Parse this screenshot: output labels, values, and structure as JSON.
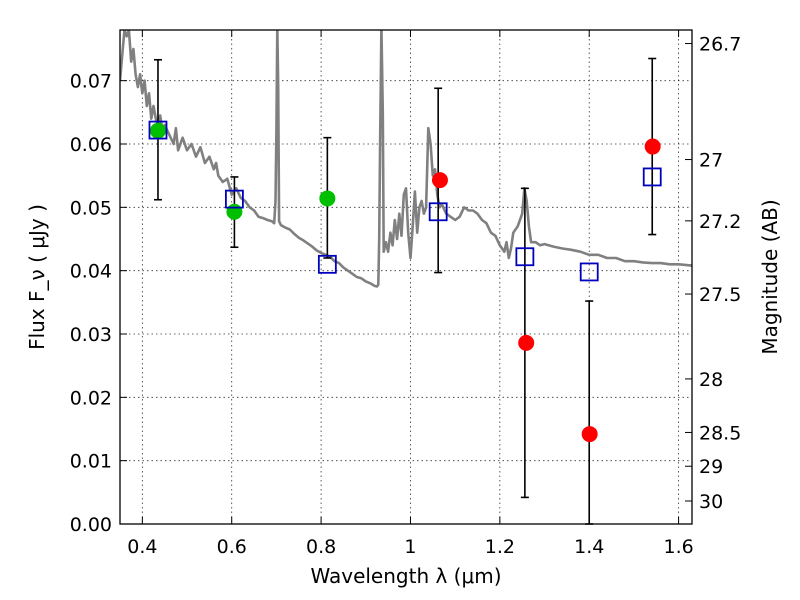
{
  "chart_data": {
    "type": "scatter",
    "title": "",
    "xlabel": "Wavelength  λ (μm)",
    "ylabel": "Flux  F_ν  ( μJy )",
    "y2label": "Magnitude (AB)",
    "xlim": [
      0.35,
      1.63
    ],
    "ylim": [
      0.0,
      0.078
    ],
    "grid": true,
    "x_ticks": [
      {
        "value": 0.4,
        "label": "0.4"
      },
      {
        "value": 0.6,
        "label": "0.6"
      },
      {
        "value": 0.8,
        "label": "0.8"
      },
      {
        "value": 1.0,
        "label": "1"
      },
      {
        "value": 1.2,
        "label": "1.2"
      },
      {
        "value": 1.4,
        "label": "1.4"
      },
      {
        "value": 1.6,
        "label": "1.6"
      }
    ],
    "y_ticks": [
      {
        "value": 0.0,
        "label": "0.00"
      },
      {
        "value": 0.01,
        "label": "0.01"
      },
      {
        "value": 0.02,
        "label": "0.02"
      },
      {
        "value": 0.03,
        "label": "0.03"
      },
      {
        "value": 0.04,
        "label": "0.04"
      },
      {
        "value": 0.05,
        "label": "0.05"
      },
      {
        "value": 0.06,
        "label": "0.06"
      },
      {
        "value": 0.07,
        "label": "0.07"
      }
    ],
    "y2_ticks": [
      {
        "value": 26.7,
        "label": "26.7"
      },
      {
        "value": 27.0,
        "label": "27"
      },
      {
        "value": 27.2,
        "label": "27.2"
      },
      {
        "value": 27.5,
        "label": "27.5"
      },
      {
        "value": 28.0,
        "label": "28"
      },
      {
        "value": 28.5,
        "label": "28.5"
      },
      {
        "value": 29.0,
        "label": "29"
      },
      {
        "value": 30.0,
        "label": "30"
      }
    ],
    "series": [
      {
        "marker": "line",
        "color": "#808080",
        "points": [
          [
            0.35,
            0.07
          ],
          [
            0.355,
            0.074
          ],
          [
            0.36,
            0.078
          ],
          [
            0.365,
            0.077
          ],
          [
            0.37,
            0.078
          ],
          [
            0.375,
            0.073
          ],
          [
            0.38,
            0.075
          ],
          [
            0.385,
            0.071
          ],
          [
            0.39,
            0.069
          ],
          [
            0.395,
            0.071
          ],
          [
            0.4,
            0.068
          ],
          [
            0.405,
            0.07
          ],
          [
            0.41,
            0.066
          ],
          [
            0.415,
            0.068
          ],
          [
            0.42,
            0.064
          ],
          [
            0.425,
            0.066
          ],
          [
            0.43,
            0.064
          ],
          [
            0.435,
            0.063
          ],
          [
            0.44,
            0.0645
          ],
          [
            0.445,
            0.062
          ],
          [
            0.45,
            0.063
          ],
          [
            0.46,
            0.0615
          ],
          [
            0.47,
            0.06
          ],
          [
            0.475,
            0.0625
          ],
          [
            0.48,
            0.059
          ],
          [
            0.49,
            0.061
          ],
          [
            0.5,
            0.059
          ],
          [
            0.51,
            0.06
          ],
          [
            0.52,
            0.058
          ],
          [
            0.53,
            0.0595
          ],
          [
            0.54,
            0.057
          ],
          [
            0.55,
            0.058
          ],
          [
            0.56,
            0.056
          ],
          [
            0.565,
            0.057
          ],
          [
            0.57,
            0.055
          ],
          [
            0.58,
            0.054
          ],
          [
            0.59,
            0.0545
          ],
          [
            0.6,
            0.052
          ],
          [
            0.61,
            0.053
          ],
          [
            0.62,
            0.0515
          ],
          [
            0.63,
            0.051
          ],
          [
            0.64,
            0.05
          ],
          [
            0.65,
            0.0495
          ],
          [
            0.66,
            0.0485
          ],
          [
            0.67,
            0.0483
          ],
          [
            0.68,
            0.048
          ],
          [
            0.69,
            0.0478
          ],
          [
            0.695,
            0.0475
          ],
          [
            0.698,
            0.051
          ],
          [
            0.7,
            0.062
          ],
          [
            0.702,
            0.0785
          ],
          [
            0.704,
            0.069
          ],
          [
            0.706,
            0.0478
          ],
          [
            0.71,
            0.0472
          ],
          [
            0.72,
            0.0468
          ],
          [
            0.73,
            0.0465
          ],
          [
            0.74,
            0.0458
          ],
          [
            0.75,
            0.0452
          ],
          [
            0.76,
            0.0448
          ],
          [
            0.77,
            0.0443
          ],
          [
            0.78,
            0.0438
          ],
          [
            0.79,
            0.0432
          ],
          [
            0.8,
            0.0428
          ],
          [
            0.81,
            0.0425
          ],
          [
            0.82,
            0.0422
          ],
          [
            0.83,
            0.0415
          ],
          [
            0.84,
            0.0412
          ],
          [
            0.85,
            0.0405
          ],
          [
            0.86,
            0.04
          ],
          [
            0.87,
            0.0395
          ],
          [
            0.88,
            0.039
          ],
          [
            0.89,
            0.0388
          ],
          [
            0.9,
            0.0383
          ],
          [
            0.91,
            0.038
          ],
          [
            0.915,
            0.0378
          ],
          [
            0.92,
            0.0376
          ],
          [
            0.925,
            0.0375
          ],
          [
            0.928,
            0.0378
          ],
          [
            0.93,
            0.045
          ],
          [
            0.932,
            0.06
          ],
          [
            0.935,
            0.0785
          ],
          [
            0.938,
            0.065
          ],
          [
            0.94,
            0.043
          ],
          [
            0.945,
            0.0445
          ],
          [
            0.95,
            0.043
          ],
          [
            0.955,
            0.046
          ],
          [
            0.96,
            0.044
          ],
          [
            0.965,
            0.048
          ],
          [
            0.97,
            0.045
          ],
          [
            0.975,
            0.049
          ],
          [
            0.98,
            0.0455
          ],
          [
            0.985,
            0.052
          ],
          [
            0.99,
            0.053
          ],
          [
            0.995,
            0.046
          ],
          [
            1.0,
            0.042
          ],
          [
            1.005,
            0.047
          ],
          [
            1.01,
            0.0525
          ],
          [
            1.015,
            0.046
          ],
          [
            1.02,
            0.05
          ],
          [
            1.025,
            0.051
          ],
          [
            1.03,
            0.049
          ],
          [
            1.035,
            0.05
          ],
          [
            1.04,
            0.0625
          ],
          [
            1.045,
            0.06
          ],
          [
            1.05,
            0.055
          ],
          [
            1.055,
            0.056
          ],
          [
            1.06,
            0.052
          ],
          [
            1.065,
            0.05
          ],
          [
            1.07,
            0.0505
          ],
          [
            1.08,
            0.049
          ],
          [
            1.09,
            0.0485
          ],
          [
            1.1,
            0.048
          ],
          [
            1.11,
            0.0485
          ],
          [
            1.12,
            0.05
          ],
          [
            1.13,
            0.0495
          ],
          [
            1.14,
            0.0495
          ],
          [
            1.15,
            0.049
          ],
          [
            1.16,
            0.048
          ],
          [
            1.17,
            0.0475
          ],
          [
            1.18,
            0.046
          ],
          [
            1.19,
            0.0455
          ],
          [
            1.2,
            0.044
          ],
          [
            1.21,
            0.043
          ],
          [
            1.215,
            0.0445
          ],
          [
            1.22,
            0.042
          ],
          [
            1.225,
            0.0435
          ],
          [
            1.23,
            0.046
          ],
          [
            1.24,
            0.047
          ],
          [
            1.25,
            0.049
          ],
          [
            1.255,
            0.053
          ],
          [
            1.26,
            0.051
          ],
          [
            1.265,
            0.047
          ],
          [
            1.27,
            0.0445
          ],
          [
            1.28,
            0.0445
          ],
          [
            1.29,
            0.044
          ],
          [
            1.3,
            0.0442
          ],
          [
            1.32,
            0.0438
          ],
          [
            1.34,
            0.0435
          ],
          [
            1.36,
            0.0433
          ],
          [
            1.38,
            0.043
          ],
          [
            1.4,
            0.0425
          ],
          [
            1.42,
            0.0425
          ],
          [
            1.44,
            0.042
          ],
          [
            1.46,
            0.042
          ],
          [
            1.48,
            0.0415
          ],
          [
            1.5,
            0.0415
          ],
          [
            1.52,
            0.0413
          ],
          [
            1.54,
            0.0412
          ],
          [
            1.56,
            0.0412
          ],
          [
            1.58,
            0.041
          ],
          [
            1.6,
            0.041
          ],
          [
            1.63,
            0.0408
          ]
        ]
      },
      {
        "marker": "square",
        "color": "#0000bf",
        "points": [
          {
            "x": 0.435,
            "y": 0.0622,
            "err_low": 0.0512,
            "err_high": 0.0733
          },
          {
            "x": 0.606,
            "y": 0.0513,
            "err_low": 0.0437,
            "err_high": 0.0548
          },
          {
            "x": 0.814,
            "y": 0.041,
            "err_low": 0.042,
            "err_high": 0.061
          },
          {
            "x": 1.062,
            "y": 0.0493,
            "err_low": 0.0397,
            "err_high": 0.0688
          },
          {
            "x": 1.256,
            "y": 0.0422,
            "err_low": 0.0042,
            "err_high": 0.053
          },
          {
            "x": 1.4,
            "y": 0.0398,
            "err_low": 0.0,
            "err_high": 0.0352
          },
          {
            "x": 1.541,
            "y": 0.0548,
            "err_low": 0.0457,
            "err_high": 0.0735
          }
        ]
      },
      {
        "marker": "circle",
        "color": "#00bf00",
        "points": [
          {
            "x": 0.435,
            "y": 0.0621
          },
          {
            "x": 0.606,
            "y": 0.0493
          },
          {
            "x": 0.814,
            "y": 0.0514
          }
        ]
      },
      {
        "marker": "circle",
        "color": "#ff0000",
        "points": [
          {
            "x": 1.066,
            "y": 0.0543
          },
          {
            "x": 1.259,
            "y": 0.0286
          },
          {
            "x": 1.401,
            "y": 0.0142
          },
          {
            "x": 1.542,
            "y": 0.0596
          }
        ]
      }
    ]
  }
}
